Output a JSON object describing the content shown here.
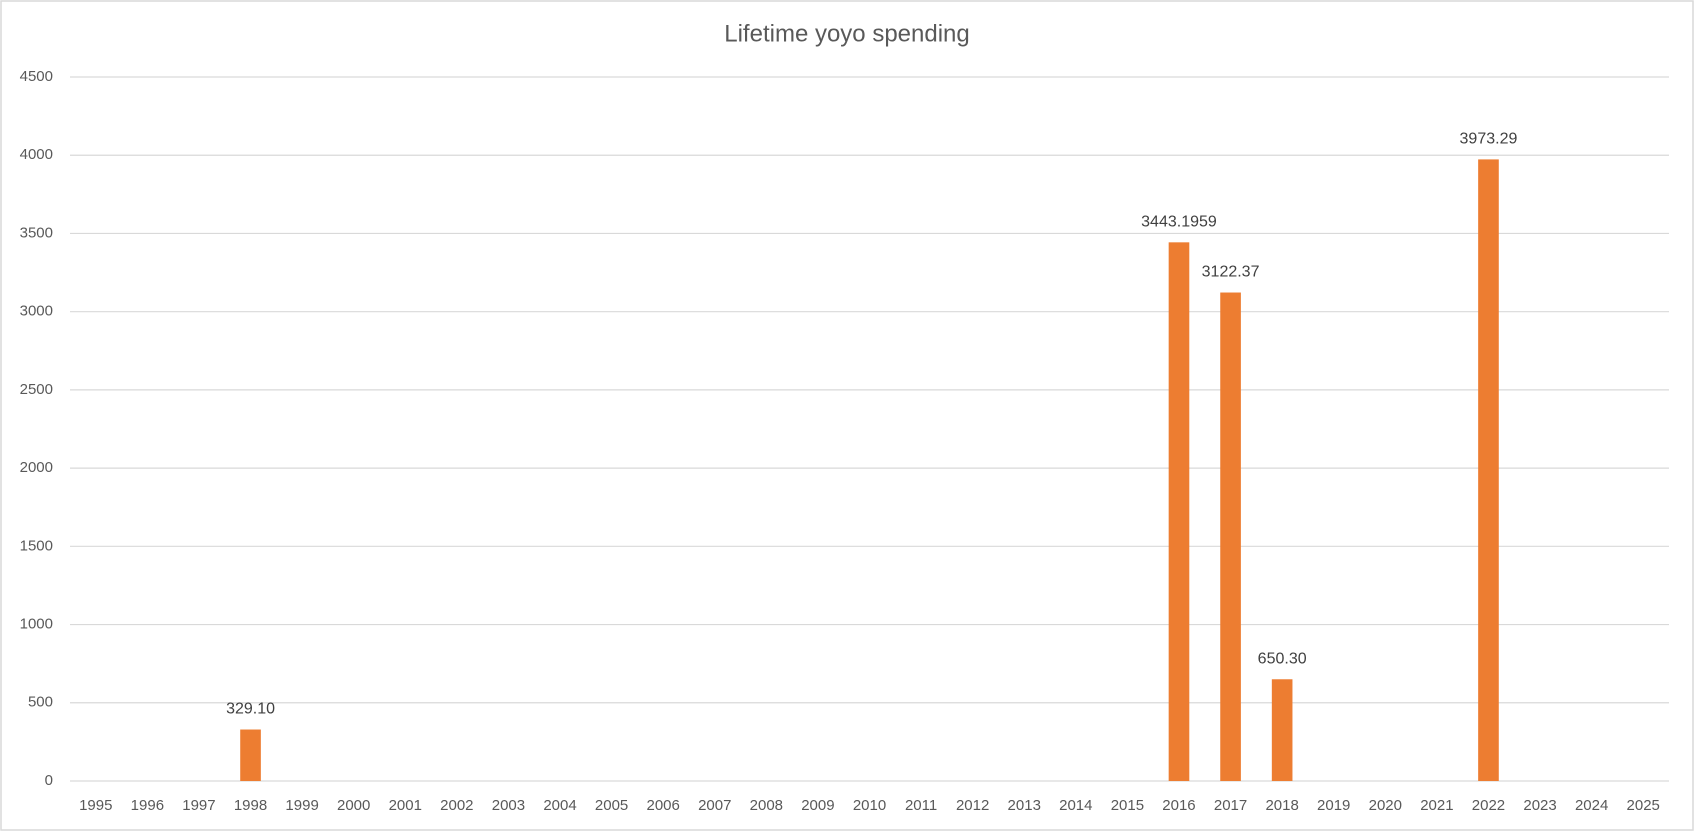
{
  "chart_data": {
    "type": "bar",
    "title": "Lifetime yoyo spending",
    "categories": [
      "1995",
      "1996",
      "1997",
      "1998",
      "1999",
      "2000",
      "2001",
      "2002",
      "2003",
      "2004",
      "2005",
      "2006",
      "2007",
      "2008",
      "2009",
      "2010",
      "2011",
      "2012",
      "2013",
      "2014",
      "2015",
      "2016",
      "2017",
      "2018",
      "2019",
      "2020",
      "2021",
      "2022",
      "2023",
      "2024",
      "2025"
    ],
    "values": [
      null,
      null,
      null,
      329.1,
      null,
      null,
      null,
      null,
      null,
      null,
      null,
      null,
      null,
      null,
      null,
      null,
      null,
      null,
      null,
      null,
      null,
      3443.1959,
      3122.37,
      650.3,
      null,
      null,
      null,
      3973.29,
      null,
      null,
      null
    ],
    "value_labels": [
      null,
      null,
      null,
      "329.10",
      null,
      null,
      null,
      null,
      null,
      null,
      null,
      null,
      null,
      null,
      null,
      null,
      null,
      null,
      null,
      null,
      null,
      "3443.1959",
      "3122.37",
      "650.30",
      null,
      null,
      null,
      "3973.29",
      null,
      null,
      null
    ],
    "color": "#ed7d31",
    "ylim": [
      0,
      4500
    ],
    "yticks": [
      0,
      500,
      1000,
      1500,
      2000,
      2500,
      3000,
      3500,
      4000,
      4500
    ],
    "grid": true
  }
}
